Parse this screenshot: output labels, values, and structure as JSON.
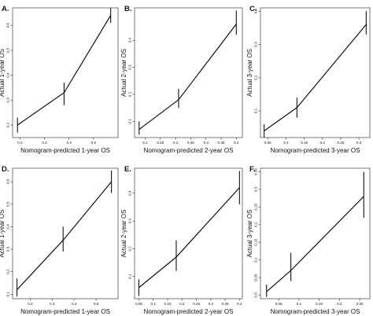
{
  "chart_data": [
    {
      "type": "line",
      "panel": "A.",
      "xlabel": "Nomogram-predicted 1-year OS",
      "ylabel": "Actual 1-year OS",
      "xlim": [
        0.17,
        0.6
      ],
      "ylim": [
        0.15,
        0.67
      ],
      "x_ticks": [
        0.2,
        0.3,
        0.4,
        0.5
      ],
      "y_ticks": [
        0.2,
        0.3,
        0.4,
        0.5,
        0.6
      ],
      "points": [
        {
          "x": 0.19,
          "y": 0.2,
          "lo": 0.17,
          "hi": 0.23
        },
        {
          "x": 0.38,
          "y": 0.33,
          "lo": 0.28,
          "hi": 0.37
        },
        {
          "x": 0.57,
          "y": 0.64,
          "lo": 0.61,
          "hi": 0.67
        }
      ]
    },
    {
      "type": "line",
      "panel": "B.",
      "xlabel": "Nomogram-predicted 2-year OS",
      "ylabel": "Actual 2-year OS",
      "xlim": [
        0.065,
        0.42
      ],
      "ylim": [
        0.04,
        0.52
      ],
      "x_ticks": [
        0.1,
        0.15,
        0.2,
        0.25,
        0.3,
        0.35,
        0.4
      ],
      "y_ticks": [
        0.1,
        0.2,
        0.3,
        0.4
      ],
      "points": [
        {
          "x": 0.08,
          "y": 0.07,
          "lo": 0.05,
          "hi": 0.1
        },
        {
          "x": 0.21,
          "y": 0.18,
          "lo": 0.15,
          "hi": 0.22
        },
        {
          "x": 0.4,
          "y": 0.46,
          "lo": 0.42,
          "hi": 0.51
        }
      ]
    },
    {
      "type": "line",
      "panel": "C.",
      "xlabel": "Nomogram-predicted 3-year OS",
      "ylabel": "Actual 3-year OS",
      "xlim": [
        0.03,
        0.33
      ],
      "ylim": [
        0.02,
        0.41
      ],
      "x_ticks": [
        0.05,
        0.1,
        0.15,
        0.2,
        0.25,
        0.3
      ],
      "y_ticks": [
        0.1,
        0.2,
        0.3,
        0.4
      ],
      "points": [
        {
          "x": 0.04,
          "y": 0.04,
          "lo": 0.02,
          "hi": 0.06
        },
        {
          "x": 0.13,
          "y": 0.11,
          "lo": 0.08,
          "hi": 0.14
        },
        {
          "x": 0.32,
          "y": 0.36,
          "lo": 0.33,
          "hi": 0.4
        }
      ]
    },
    {
      "type": "line",
      "panel": "D.",
      "xlabel": "Nomogram-predicted 1-year OS",
      "ylabel": "Actual 1-year OS",
      "xlim": [
        0.12,
        0.6
      ],
      "ylim": [
        0.08,
        0.66
      ],
      "x_ticks": [
        0.2,
        0.3,
        0.4,
        0.5
      ],
      "y_ticks": [
        0.1,
        0.2,
        0.3,
        0.4,
        0.5,
        0.6
      ],
      "points": [
        {
          "x": 0.14,
          "y": 0.12,
          "lo": 0.09,
          "hi": 0.17
        },
        {
          "x": 0.35,
          "y": 0.34,
          "lo": 0.29,
          "hi": 0.4
        },
        {
          "x": 0.57,
          "y": 0.6,
          "lo": 0.55,
          "hi": 0.65
        }
      ]
    },
    {
      "type": "line",
      "panel": "E.",
      "xlabel": "Nomogram-predicted 2-year OS",
      "ylabel": "Actual 2-year OS",
      "xlim": [
        0.035,
        0.41
      ],
      "ylim": [
        0.02,
        0.49
      ],
      "x_ticks": [
        0.05,
        0.1,
        0.15,
        0.2,
        0.25,
        0.3,
        0.35,
        0.4
      ],
      "y_ticks": [
        0.1,
        0.2,
        0.3,
        0.4
      ],
      "points": [
        {
          "x": 0.05,
          "y": 0.06,
          "lo": 0.03,
          "hi": 0.09
        },
        {
          "x": 0.18,
          "y": 0.17,
          "lo": 0.12,
          "hi": 0.23
        },
        {
          "x": 0.4,
          "y": 0.42,
          "lo": 0.36,
          "hi": 0.48
        }
      ]
    },
    {
      "type": "line",
      "panel": "F.",
      "xlabel": "Nomogram-predicted 3-year OS",
      "ylabel": "Actual 3-year OS",
      "xlim": [
        0.005,
        0.275
      ],
      "ylim": [
        -0.01,
        0.36
      ],
      "x_ticks": [
        0.05,
        0.1,
        0.15,
        0.2,
        0.25
      ],
      "y_ticks": [
        0.0,
        0.05,
        0.1,
        0.15,
        0.2,
        0.25,
        0.3,
        0.35
      ],
      "points": [
        {
          "x": 0.02,
          "y": 0.01,
          "lo": -0.005,
          "hi": 0.03
        },
        {
          "x": 0.08,
          "y": 0.07,
          "lo": 0.04,
          "hi": 0.12
        },
        {
          "x": 0.26,
          "y": 0.28,
          "lo": 0.22,
          "hi": 0.35
        }
      ]
    }
  ]
}
